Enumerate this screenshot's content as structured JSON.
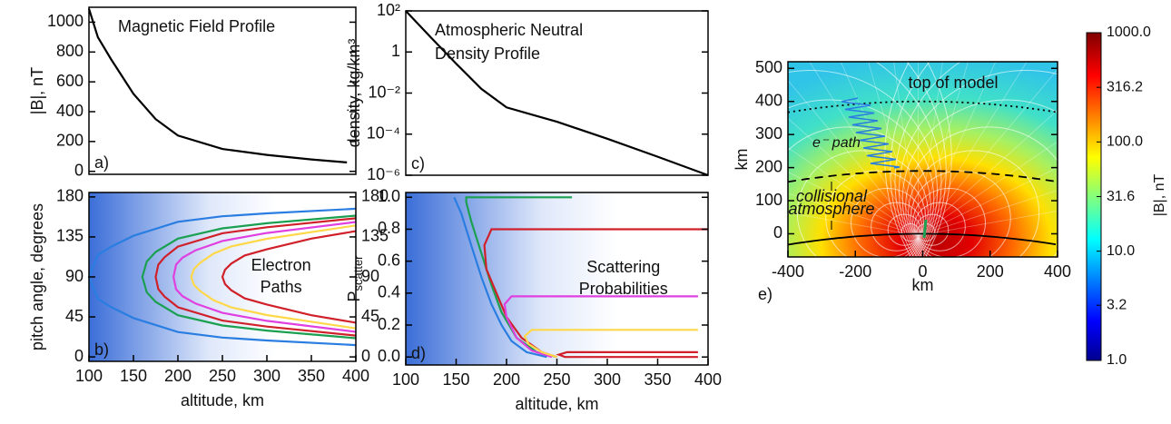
{
  "chart_data": [
    {
      "type": "line",
      "panel_label": "a)",
      "title": [
        "Magnetic Field Profile"
      ],
      "ylabel": "|B|, nT",
      "xlim": [
        100,
        400
      ],
      "ylim": [
        -20,
        1100
      ],
      "yticks": [
        0,
        200,
        400,
        600,
        800,
        1000
      ],
      "series": [
        {
          "color": "#000000",
          "x": [
            100,
            110,
            125,
            150,
            175,
            200,
            250,
            300,
            350,
            390
          ],
          "values": [
            1090,
            900,
            750,
            520,
            350,
            240,
            150,
            110,
            80,
            60
          ]
        }
      ]
    },
    {
      "type": "line",
      "panel_label": "b)",
      "annotation": [
        "Electron",
        "Paths"
      ],
      "ylabel": "pitch angle, degrees",
      "xlabel": "altitude, km",
      "xlim": [
        100,
        400
      ],
      "xticks": [
        100,
        150,
        200,
        250,
        300,
        350,
        400
      ],
      "ylim": [
        -5,
        185
      ],
      "yticks": [
        0,
        45,
        90,
        135,
        180
      ],
      "y2lim": [
        -5,
        185
      ],
      "y2ticks": [
        0,
        45,
        90,
        135,
        180
      ],
      "background": "gradient",
      "series": [
        {
          "color": "#2a7de1",
          "x": [
            400,
            300,
            250,
            200,
            150,
            125,
            110,
            100,
            110,
            125,
            150,
            200,
            250,
            300,
            400
          ],
          "values": [
            166.7,
            161.5,
            158.2,
            152,
            136.3,
            124,
            114.7,
            90,
            65.3,
            56,
            43.7,
            28,
            21.8,
            18.5,
            13.3
          ]
        },
        {
          "color": "#1aa050",
          "x": [
            400,
            300,
            250,
            200,
            175,
            165,
            160,
            165,
            175,
            200,
            250,
            300,
            400
          ],
          "values": [
            159,
            150.4,
            144.7,
            133.1,
            118.1,
            107.4,
            90,
            72.6,
            61.9,
            46.9,
            35.3,
            29.6,
            21
          ]
        },
        {
          "color": "#d0202a",
          "x": [
            400,
            300,
            250,
            200,
            185,
            178,
            175,
            178,
            185,
            200,
            250,
            300,
            400
          ],
          "values": [
            156,
            145.9,
            139.1,
            124.1,
            112.2,
            103.8,
            90,
            76.2,
            67.8,
            55.9,
            40.9,
            34.1,
            24
          ]
        },
        {
          "color": "#e040e0",
          "x": [
            400,
            300,
            250,
            220,
            205,
            198,
            195,
            198,
            205,
            220,
            250,
            300,
            400
          ],
          "values": [
            151.8,
            139.4,
            130.5,
            120,
            111.6,
            103.9,
            90,
            76.1,
            68.4,
            60,
            49.5,
            40.6,
            28.2
          ]
        },
        {
          "color": "#ffd84a",
          "x": [
            400,
            300,
            260,
            240,
            225,
            218,
            215,
            218,
            225,
            240,
            260,
            300,
            400
          ],
          "values": [
            147.9,
            132.9,
            124.3,
            116.3,
            105.8,
            98.9,
            90,
            81.1,
            74.2,
            63.7,
            55.7,
            47.1,
            32.1
          ]
        },
        {
          "color": "#d0202a",
          "x": [
            400,
            350,
            300,
            275,
            260,
            253,
            250,
            253,
            260,
            275,
            300,
            350,
            400
          ],
          "values": [
            141.5,
            133.1,
            121.1,
            114.1,
            105,
            98.1,
            90,
            81.9,
            75,
            65.9,
            58.9,
            46.9,
            38.5
          ]
        }
      ]
    },
    {
      "type": "line",
      "panel_label": "c)",
      "title": [
        "Atmospheric Neutral",
        "Density Profile"
      ],
      "ylabel": "density, kg/km³",
      "yscale": "log",
      "xlim": [
        100,
        400
      ],
      "ylim": [
        1e-06,
        100
      ],
      "yticks": [
        {
          "value": 100,
          "label": "10²"
        },
        1,
        {
          "value": 0.01,
          "label": "10⁻²"
        },
        {
          "value": 0.0001,
          "label": "10⁻⁴"
        },
        {
          "value": 1e-06,
          "label": "10⁻⁶"
        }
      ],
      "series": [
        {
          "color": "#000000",
          "x": [
            100,
            125,
            150,
            175,
            200,
            250,
            300,
            350,
            400
          ],
          "values": [
            100,
            5,
            0.27,
            0.016,
            0.002,
            0.0004,
            6e-05,
            8e-06,
            1e-06
          ]
        }
      ]
    },
    {
      "type": "line",
      "panel_label": "d)",
      "annotation": [
        "Scattering",
        "Probabilities"
      ],
      "ylabel": "P",
      "ylabel_sub": "scatter",
      "xlabel": "altitude, km",
      "xlim": [
        100,
        400
      ],
      "xticks": [
        100,
        150,
        200,
        250,
        300,
        350,
        400
      ],
      "ylim": [
        -0.05,
        1.03
      ],
      "yticks": [
        {
          "value": 0,
          "label": "0.0"
        },
        0.2,
        0.4,
        0.6,
        0.8,
        {
          "value": 1,
          "label": "1.0"
        }
      ],
      "background": "gradient",
      "series": [
        {
          "color": "#2a7de1",
          "x": [
            148,
            155,
            165,
            175,
            185,
            195,
            205,
            220,
            240
          ],
          "values": [
            1.0,
            0.9,
            0.7,
            0.5,
            0.33,
            0.2,
            0.1,
            0.03,
            0.0
          ]
        },
        {
          "color": "#1aa050",
          "x": [
            265,
            160,
            160,
            165,
            175,
            185,
            195,
            210,
            230,
            250
          ],
          "values": [
            1.0,
            1.0,
            0.97,
            0.85,
            0.65,
            0.45,
            0.28,
            0.12,
            0.03,
            0.0
          ]
        },
        {
          "color": "#d0202a",
          "x": [
            400,
            185,
            178,
            180,
            190,
            200,
            215,
            235,
            250
          ],
          "values": [
            0.8,
            0.8,
            0.7,
            0.55,
            0.4,
            0.25,
            0.12,
            0.03,
            0.0
          ]
        },
        {
          "color": "#e040e0",
          "x": [
            390,
            205,
            198,
            200,
            210,
            225,
            245
          ],
          "values": [
            0.38,
            0.38,
            0.33,
            0.25,
            0.12,
            0.04,
            0.0
          ]
        },
        {
          "color": "#ffd84a",
          "x": [
            390,
            225,
            218,
            222,
            235,
            250
          ],
          "values": [
            0.17,
            0.17,
            0.13,
            0.08,
            0.03,
            0.0
          ]
        },
        {
          "color": "#d0202a",
          "x": [
            390,
            260,
            252,
            258,
            390
          ],
          "values": [
            0.03,
            0.03,
            0.015,
            0.0,
            0.0
          ]
        }
      ]
    },
    {
      "type": "heatmap",
      "panel_label": "e)",
      "xlabel": "km",
      "ylabel": "km",
      "xlim": [
        -400,
        400
      ],
      "xticks": [
        -400,
        -200,
        0,
        200,
        400
      ],
      "ylim": [
        -70,
        520
      ],
      "yticks": [
        0,
        100,
        200,
        300,
        400,
        500
      ],
      "model_top": 400,
      "atmosphere_top": 190,
      "surface": 0,
      "annotations": {
        "top": "top of model",
        "path": "e⁻ path",
        "atmosphere": [
          "collisional",
          "atmosphere"
        ]
      },
      "colorbar": {
        "label": "|B|, nT",
        "scale": "log",
        "lim": [
          1,
          1000
        ],
        "ticks": [
          {
            "value": 1,
            "label": "1.0"
          },
          3.2,
          {
            "value": 10,
            "label": "10.0"
          },
          31.6,
          {
            "value": 100,
            "label": "100.0"
          },
          316.2,
          {
            "value": 1000,
            "label": "1000.0"
          }
        ]
      }
    }
  ]
}
